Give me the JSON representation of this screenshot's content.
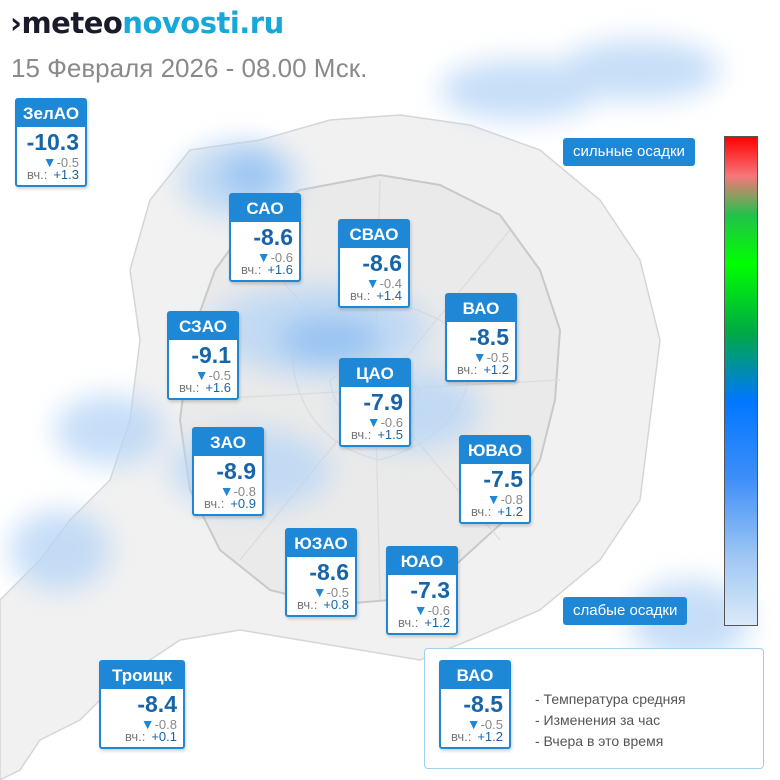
{
  "logo": {
    "mark": "›",
    "part1": "meteo",
    "part2": "novosti.ru"
  },
  "subtitle": "15 Февраля 2026 - 08.00 Мск.",
  "yesterday_label": "вч.:",
  "districts": [
    {
      "name": "ЗелАО",
      "temp": "-10.3",
      "change": "-0.5",
      "yesterday": "+1.3"
    },
    {
      "name": "САО",
      "temp": "-8.6",
      "change": "-0.6",
      "yesterday": "+1.6"
    },
    {
      "name": "СВАО",
      "temp": "-8.6",
      "change": "-0.4",
      "yesterday": "+1.4"
    },
    {
      "name": "ВАО",
      "temp": "-8.5",
      "change": "-0.5",
      "yesterday": "+1.2"
    },
    {
      "name": "СЗАО",
      "temp": "-9.1",
      "change": "-0.5",
      "yesterday": "+1.6"
    },
    {
      "name": "ЦАО",
      "temp": "-7.9",
      "change": "-0.6",
      "yesterday": "+1.5"
    },
    {
      "name": "ЗАО",
      "temp": "-8.9",
      "change": "-0.8",
      "yesterday": "+0.9"
    },
    {
      "name": "ЮВАО",
      "temp": "-7.5",
      "change": "-0.8",
      "yesterday": "+1.2"
    },
    {
      "name": "ЮЗАО",
      "temp": "-8.6",
      "change": "-0.5",
      "yesterday": "+0.8"
    },
    {
      "name": "ЮАО",
      "temp": "-7.3",
      "change": "-0.6",
      "yesterday": "+1.2"
    },
    {
      "name": "Троицк",
      "temp": "-8.4",
      "change": "-0.8",
      "yesterday": "+0.1"
    }
  ],
  "scale": {
    "top_label": "сильные осадки",
    "bottom_label": "слабые осадки"
  },
  "legend": {
    "sample": {
      "name": "ВАО",
      "temp": "-8.5",
      "change": "-0.5",
      "yesterday": "+1.2"
    },
    "items": [
      "- Температура средняя",
      "- Изменения за час",
      "- Вчера в это время"
    ]
  },
  "colors": {
    "accent": "#1e88d6",
    "temp_text": "#1765a8",
    "precip_light": "#cfe4fa"
  }
}
